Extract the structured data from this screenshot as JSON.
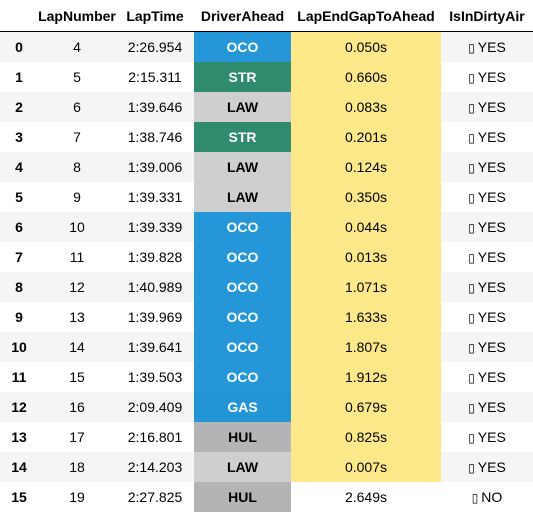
{
  "columns": [
    "",
    "LapNumber",
    "LapTime",
    "DriverAhead",
    "LapEndGapToAhead",
    "IsInDirtyAir"
  ],
  "colors": {
    "OCO": "#2596d8",
    "STR": "#2f8a6e",
    "LAW": "#cfcfcf",
    "GAS": "#2394d4",
    "HUL": "#b2b4b6",
    "gap_highlight": "#fde98a"
  },
  "rows": [
    {
      "index": "0",
      "lap": "4",
      "time": "2:26.954",
      "driver": "OCO",
      "gap": "0.050s",
      "dirty_icon": "check-box-icon",
      "dirty": "YES",
      "gap_highlight": true
    },
    {
      "index": "1",
      "lap": "5",
      "time": "2:15.311",
      "driver": "STR",
      "gap": "0.660s",
      "dirty_icon": "check-box-icon",
      "dirty": "YES",
      "gap_highlight": true
    },
    {
      "index": "2",
      "lap": "6",
      "time": "1:39.646",
      "driver": "LAW",
      "gap": "0.083s",
      "dirty_icon": "check-box-icon",
      "dirty": "YES",
      "gap_highlight": true
    },
    {
      "index": "3",
      "lap": "7",
      "time": "1:38.746",
      "driver": "STR",
      "gap": "0.201s",
      "dirty_icon": "check-box-icon",
      "dirty": "YES",
      "gap_highlight": true
    },
    {
      "index": "4",
      "lap": "8",
      "time": "1:39.006",
      "driver": "LAW",
      "gap": "0.124s",
      "dirty_icon": "check-box-icon",
      "dirty": "YES",
      "gap_highlight": true
    },
    {
      "index": "5",
      "lap": "9",
      "time": "1:39.331",
      "driver": "LAW",
      "gap": "0.350s",
      "dirty_icon": "check-box-icon",
      "dirty": "YES",
      "gap_highlight": true
    },
    {
      "index": "6",
      "lap": "10",
      "time": "1:39.339",
      "driver": "OCO",
      "gap": "0.044s",
      "dirty_icon": "check-box-icon",
      "dirty": "YES",
      "gap_highlight": true
    },
    {
      "index": "7",
      "lap": "11",
      "time": "1:39.828",
      "driver": "OCO",
      "gap": "0.013s",
      "dirty_icon": "check-box-icon",
      "dirty": "YES",
      "gap_highlight": true
    },
    {
      "index": "8",
      "lap": "12",
      "time": "1:40.989",
      "driver": "OCO",
      "gap": "1.071s",
      "dirty_icon": "check-box-icon",
      "dirty": "YES",
      "gap_highlight": true
    },
    {
      "index": "9",
      "lap": "13",
      "time": "1:39.969",
      "driver": "OCO",
      "gap": "1.633s",
      "dirty_icon": "check-box-icon",
      "dirty": "YES",
      "gap_highlight": true
    },
    {
      "index": "10",
      "lap": "14",
      "time": "1:39.641",
      "driver": "OCO",
      "gap": "1.807s",
      "dirty_icon": "check-box-icon",
      "dirty": "YES",
      "gap_highlight": true
    },
    {
      "index": "11",
      "lap": "15",
      "time": "1:39.503",
      "driver": "OCO",
      "gap": "1.912s",
      "dirty_icon": "check-box-icon",
      "dirty": "YES",
      "gap_highlight": true
    },
    {
      "index": "12",
      "lap": "16",
      "time": "2:09.409",
      "driver": "GAS",
      "gap": "0.679s",
      "dirty_icon": "check-box-icon",
      "dirty": "YES",
      "gap_highlight": true
    },
    {
      "index": "13",
      "lap": "17",
      "time": "2:16.801",
      "driver": "HUL",
      "gap": "0.825s",
      "dirty_icon": "check-box-icon",
      "dirty": "YES",
      "gap_highlight": true
    },
    {
      "index": "14",
      "lap": "18",
      "time": "2:14.203",
      "driver": "LAW",
      "gap": "0.007s",
      "dirty_icon": "check-box-icon",
      "dirty": "YES",
      "gap_highlight": true
    },
    {
      "index": "15",
      "lap": "19",
      "time": "2:27.825",
      "driver": "HUL",
      "gap": "2.649s",
      "dirty_icon": "cross-box-icon",
      "dirty": "NO",
      "gap_highlight": false
    }
  ]
}
